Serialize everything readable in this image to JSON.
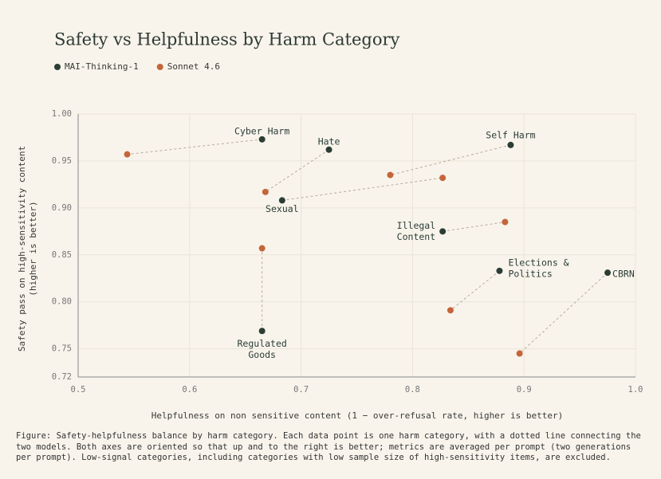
{
  "chart_data": {
    "type": "scatter",
    "title": "Safety vs Helpfulness by Harm Category",
    "xlabel": "Helpfulness on non sensitive content (1 − over-refusal rate, higher is better)",
    "ylabel": [
      "Safety pass on high-sensitivity content",
      "(higher is better)"
    ],
    "categories": [
      [
        "Cyber Harm"
      ],
      [
        "Hate"
      ],
      [
        "Self Harm"
      ],
      [
        "Sexual"
      ],
      [
        "Illegal",
        "Content"
      ],
      [
        "Elections &",
        "Politics"
      ],
      [
        "CBRN"
      ],
      [
        "Regulated",
        "Goods"
      ]
    ],
    "series": [
      {
        "name": "MAI-Thinking-1",
        "color": "#2b3d35",
        "x": [
          0.665,
          0.725,
          0.888,
          0.683,
          0.827,
          0.878,
          0.975,
          0.665
        ],
        "values": [
          0.973,
          0.962,
          0.967,
          0.908,
          0.875,
          0.833,
          0.831,
          0.769
        ]
      },
      {
        "name": "Sonnet 4.6",
        "color": "#c4653a",
        "x": [
          0.544,
          0.668,
          0.78,
          0.827,
          0.883,
          0.834,
          0.896,
          0.665
        ],
        "values": [
          0.957,
          0.917,
          0.935,
          0.932,
          0.885,
          0.791,
          0.745,
          0.857
        ]
      }
    ],
    "xlim": [
      0.5,
      1.0
    ],
    "ylim": [
      0.72,
      1.0
    ],
    "xticks": [
      0.5,
      0.6,
      0.7,
      0.8,
      0.9,
      {
        "value": 1.0,
        "label": "1.0"
      }
    ],
    "yticks": [
      0.72,
      0.75,
      {
        "value": 0.8,
        "label": "0.80"
      },
      0.85,
      {
        "value": 0.9,
        "label": "0.90"
      },
      0.95,
      {
        "value": 1.0,
        "label": "1.00"
      }
    ],
    "grid": true,
    "caption": "Figure: Safety-helpfulness balance by harm category. Each data point is one harm category, with a dotted line connecting the two models. Both axes are oriented so that up and to the right is better; metrics are averaged per prompt (two generations per prompt). Low-signal categories, including categories with low sample size of high-sensitivity items, are excluded."
  }
}
